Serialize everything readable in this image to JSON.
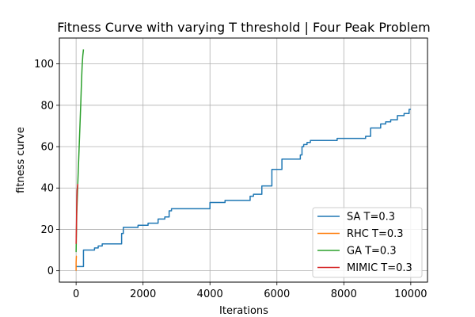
{
  "chart_data": {
    "type": "line",
    "title": "Fitness Curve with varying T threshold | Four Peak Problem",
    "xlabel": "Iterations",
    "ylabel": "fitness curve",
    "xlim": [
      -500,
      10500
    ],
    "ylim": [
      -5.5,
      112.5
    ],
    "xticks": [
      0,
      2000,
      4000,
      6000,
      8000,
      10000
    ],
    "yticks": [
      0,
      20,
      40,
      60,
      80,
      100
    ],
    "grid": true,
    "legend_position": "lower-right",
    "series": [
      {
        "name": "SA T=0.3",
        "color": "#1f77b4",
        "step": true,
        "x": [
          0,
          220,
          550,
          660,
          780,
          1360,
          1410,
          1850,
          2150,
          2450,
          2650,
          2780,
          2850,
          4000,
          4450,
          5200,
          5300,
          5550,
          5850,
          6150,
          6700,
          6750,
          6800,
          6900,
          7000,
          7800,
          8650,
          8800,
          9100,
          9250,
          9400,
          9600,
          9800,
          9950,
          10000
        ],
        "y": [
          2,
          10,
          11,
          12,
          13,
          18,
          21,
          22,
          23,
          25,
          26,
          29,
          30,
          33,
          34,
          36,
          37,
          41,
          49,
          54,
          56,
          60,
          61,
          62,
          63,
          64,
          65,
          69,
          71,
          72,
          73,
          75,
          76,
          78,
          78
        ]
      },
      {
        "name": "RHC T=0.3",
        "color": "#ff7f0e",
        "step": false,
        "x": [
          0,
          0,
          0,
          5,
          10,
          20
        ],
        "y": [
          0,
          2,
          4,
          6,
          7,
          7
        ]
      },
      {
        "name": "GA T=0.3",
        "color": "#2ca02c",
        "step": false,
        "x": [
          0,
          20,
          50,
          80,
          110,
          140,
          160,
          180,
          200,
          220
        ],
        "y": [
          9,
          28,
          42,
          55,
          68,
          81,
          91,
          99,
          104,
          107
        ]
      },
      {
        "name": "MIMIC T=0.3",
        "color": "#d62728",
        "step": false,
        "x": [
          0,
          10,
          20,
          30,
          50
        ],
        "y": [
          13,
          22,
          32,
          39,
          42
        ]
      }
    ]
  }
}
